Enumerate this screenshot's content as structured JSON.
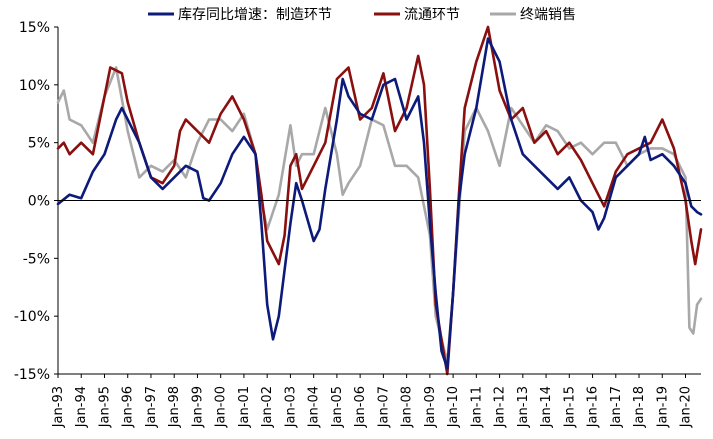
{
  "chart_data": {
    "type": "line",
    "title": "",
    "xlabel": "",
    "ylabel": "",
    "ylim": [
      -15,
      15
    ],
    "yticks": [
      -15,
      -10,
      -5,
      0,
      5,
      10,
      15
    ],
    "ytick_labels": [
      "-15%",
      "-10%",
      "-5%",
      "0%",
      "5%",
      "10%",
      "15%"
    ],
    "xticks": [
      "Jan-93",
      "Jan-94",
      "Jan-95",
      "Jan-96",
      "Jan-97",
      "Jan-98",
      "Jan-99",
      "Jan-00",
      "Jan-01",
      "Jan-02",
      "Jan-03",
      "Jan-04",
      "Jan-05",
      "Jan-06",
      "Jan-07",
      "Jan-08",
      "Jan-09",
      "Jan-10",
      "Jan-11",
      "Jan-12",
      "Jan-13",
      "Jan-14",
      "Jan-15",
      "Jan-16",
      "Jan-17",
      "Jan-18",
      "Jan-19",
      "Jan-20"
    ],
    "x_start": "1993-01",
    "x_end": "2020-09",
    "legend_position": "top",
    "grid": false,
    "series": [
      {
        "name": "库存同比增速：制造环节",
        "color": "#0c1a7a",
        "points": [
          [
            "1993-01",
            -0.3
          ],
          [
            "1993-07",
            0.5
          ],
          [
            "1994-01",
            0.2
          ],
          [
            "1994-07",
            2.5
          ],
          [
            "1995-01",
            4.0
          ],
          [
            "1995-07",
            7.0
          ],
          [
            "1995-10",
            8.0
          ],
          [
            "1996-01",
            7.0
          ],
          [
            "1996-07",
            5.0
          ],
          [
            "1997-01",
            2.0
          ],
          [
            "1997-07",
            1.0
          ],
          [
            "1998-01",
            2.0
          ],
          [
            "1998-07",
            3.0
          ],
          [
            "1999-01",
            2.5
          ],
          [
            "1999-04",
            0.2
          ],
          [
            "1999-07",
            0.0
          ],
          [
            "2000-01",
            1.5
          ],
          [
            "2000-07",
            4.0
          ],
          [
            "2001-01",
            5.5
          ],
          [
            "2001-07",
            4.0
          ],
          [
            "2001-10",
            -2.0
          ],
          [
            "2002-01",
            -9.0
          ],
          [
            "2002-04",
            -12.0
          ],
          [
            "2002-07",
            -10.0
          ],
          [
            "2002-10",
            -6.0
          ],
          [
            "2003-01",
            -2.0
          ],
          [
            "2003-04",
            1.5
          ],
          [
            "2003-07",
            0.0
          ],
          [
            "2004-01",
            -3.5
          ],
          [
            "2004-04",
            -2.5
          ],
          [
            "2004-07",
            1.0
          ],
          [
            "2005-01",
            7.0
          ],
          [
            "2005-04",
            10.5
          ],
          [
            "2005-07",
            9.0
          ],
          [
            "2006-01",
            7.5
          ],
          [
            "2006-07",
            7.0
          ],
          [
            "2007-01",
            10.0
          ],
          [
            "2007-07",
            10.5
          ],
          [
            "2008-01",
            7.0
          ],
          [
            "2008-07",
            9.0
          ],
          [
            "2008-10",
            5.0
          ],
          [
            "2009-01",
            -2.0
          ],
          [
            "2009-04",
            -8.0
          ],
          [
            "2009-07",
            -13.0
          ],
          [
            "2009-10",
            -14.5
          ],
          [
            "2010-01",
            -8.0
          ],
          [
            "2010-04",
            0.0
          ],
          [
            "2010-07",
            4.0
          ],
          [
            "2011-01",
            8.0
          ],
          [
            "2011-07",
            14.0
          ],
          [
            "2012-01",
            12.0
          ],
          [
            "2012-07",
            7.0
          ],
          [
            "2013-01",
            4.0
          ],
          [
            "2013-07",
            3.0
          ],
          [
            "2014-01",
            2.0
          ],
          [
            "2014-07",
            1.0
          ],
          [
            "2015-01",
            2.0
          ],
          [
            "2015-07",
            0.0
          ],
          [
            "2016-01",
            -1.0
          ],
          [
            "2016-04",
            -2.5
          ],
          [
            "2016-07",
            -1.5
          ],
          [
            "2017-01",
            2.0
          ],
          [
            "2017-07",
            3.0
          ],
          [
            "2018-01",
            4.0
          ],
          [
            "2018-04",
            5.5
          ],
          [
            "2018-07",
            3.5
          ],
          [
            "2019-01",
            4.0
          ],
          [
            "2019-07",
            3.0
          ],
          [
            "2020-01",
            1.5
          ],
          [
            "2020-04",
            -0.5
          ],
          [
            "2020-07",
            -1.0
          ],
          [
            "2020-09",
            -1.2
          ]
        ]
      },
      {
        "name": "流通环节",
        "color": "#8a0f0f",
        "points": [
          [
            "1993-01",
            4.5
          ],
          [
            "1993-04",
            5.0
          ],
          [
            "1993-07",
            4.0
          ],
          [
            "1994-01",
            5.0
          ],
          [
            "1994-07",
            4.0
          ],
          [
            "1995-01",
            9.0
          ],
          [
            "1995-04",
            11.5
          ],
          [
            "1995-10",
            11.0
          ],
          [
            "1996-01",
            8.5
          ],
          [
            "1996-07",
            5.0
          ],
          [
            "1997-01",
            2.0
          ],
          [
            "1997-07",
            1.5
          ],
          [
            "1998-01",
            3.0
          ],
          [
            "1998-04",
            6.0
          ],
          [
            "1998-07",
            7.0
          ],
          [
            "1999-01",
            6.0
          ],
          [
            "1999-07",
            5.0
          ],
          [
            "2000-01",
            7.5
          ],
          [
            "2000-07",
            9.0
          ],
          [
            "2001-01",
            7.0
          ],
          [
            "2001-07",
            4.0
          ],
          [
            "2001-10",
            0.5
          ],
          [
            "2002-01",
            -3.5
          ],
          [
            "2002-07",
            -5.5
          ],
          [
            "2002-10",
            -3.0
          ],
          [
            "2003-01",
            3.0
          ],
          [
            "2003-04",
            4.0
          ],
          [
            "2003-07",
            1.0
          ],
          [
            "2004-01",
            3.0
          ],
          [
            "2004-07",
            5.0
          ],
          [
            "2005-01",
            10.5
          ],
          [
            "2005-07",
            11.5
          ],
          [
            "2006-01",
            7.0
          ],
          [
            "2006-07",
            8.0
          ],
          [
            "2007-01",
            11.0
          ],
          [
            "2007-07",
            6.0
          ],
          [
            "2008-01",
            8.0
          ],
          [
            "2008-07",
            12.5
          ],
          [
            "2008-10",
            10.0
          ],
          [
            "2009-01",
            1.0
          ],
          [
            "2009-04",
            -9.0
          ],
          [
            "2009-10",
            -15.0
          ],
          [
            "2010-01",
            -8.0
          ],
          [
            "2010-04",
            0.5
          ],
          [
            "2010-07",
            8.0
          ],
          [
            "2011-01",
            12.0
          ],
          [
            "2011-07",
            15.0
          ],
          [
            "2012-01",
            9.5
          ],
          [
            "2012-07",
            7.0
          ],
          [
            "2013-01",
            8.0
          ],
          [
            "2013-07",
            5.0
          ],
          [
            "2014-01",
            6.0
          ],
          [
            "2014-07",
            4.0
          ],
          [
            "2015-01",
            5.0
          ],
          [
            "2015-07",
            3.5
          ],
          [
            "2016-01",
            1.5
          ],
          [
            "2016-07",
            -0.5
          ],
          [
            "2017-01",
            2.5
          ],
          [
            "2017-07",
            4.0
          ],
          [
            "2018-01",
            4.5
          ],
          [
            "2018-07",
            5.0
          ],
          [
            "2019-01",
            7.0
          ],
          [
            "2019-07",
            4.5
          ],
          [
            "2020-01",
            0.0
          ],
          [
            "2020-04",
            -3.5
          ],
          [
            "2020-06",
            -5.5
          ],
          [
            "2020-09",
            -2.5
          ]
        ]
      },
      {
        "name": "终端销售",
        "color": "#a8a8a8",
        "points": [
          [
            "1993-01",
            8.5
          ],
          [
            "1993-04",
            9.5
          ],
          [
            "1993-07",
            7.0
          ],
          [
            "1994-01",
            6.5
          ],
          [
            "1994-07",
            5.0
          ],
          [
            "1995-01",
            9.0
          ],
          [
            "1995-07",
            11.5
          ],
          [
            "1996-01",
            6.0
          ],
          [
            "1996-07",
            2.0
          ],
          [
            "1997-01",
            3.0
          ],
          [
            "1997-07",
            2.5
          ],
          [
            "1998-01",
            3.5
          ],
          [
            "1998-07",
            2.0
          ],
          [
            "1999-01",
            5.0
          ],
          [
            "1999-07",
            7.0
          ],
          [
            "2000-01",
            7.0
          ],
          [
            "2000-07",
            6.0
          ],
          [
            "2001-01",
            7.5
          ],
          [
            "2001-07",
            4.0
          ],
          [
            "2001-10",
            0.0
          ],
          [
            "2002-01",
            -2.5
          ],
          [
            "2002-07",
            0.5
          ],
          [
            "2003-01",
            6.5
          ],
          [
            "2003-04",
            3.0
          ],
          [
            "2003-07",
            4.0
          ],
          [
            "2004-01",
            4.0
          ],
          [
            "2004-07",
            8.0
          ],
          [
            "2005-01",
            4.0
          ],
          [
            "2005-04",
            0.5
          ],
          [
            "2005-07",
            1.5
          ],
          [
            "2006-01",
            3.0
          ],
          [
            "2006-07",
            7.0
          ],
          [
            "2007-01",
            6.5
          ],
          [
            "2007-07",
            3.0
          ],
          [
            "2008-01",
            3.0
          ],
          [
            "2008-07",
            2.0
          ],
          [
            "2009-01",
            -3.0
          ],
          [
            "2009-04",
            -10.0
          ],
          [
            "2009-10",
            -14.0
          ],
          [
            "2010-01",
            -8.0
          ],
          [
            "2010-07",
            6.0
          ],
          [
            "2011-01",
            8.0
          ],
          [
            "2011-07",
            6.0
          ],
          [
            "2012-01",
            3.0
          ],
          [
            "2012-07",
            8.0
          ],
          [
            "2013-01",
            6.5
          ],
          [
            "2013-07",
            5.0
          ],
          [
            "2014-01",
            6.5
          ],
          [
            "2014-07",
            6.0
          ],
          [
            "2015-01",
            4.5
          ],
          [
            "2015-07",
            5.0
          ],
          [
            "2016-01",
            4.0
          ],
          [
            "2016-07",
            5.0
          ],
          [
            "2017-01",
            5.0
          ],
          [
            "2017-07",
            3.0
          ],
          [
            "2018-01",
            4.0
          ],
          [
            "2018-07",
            4.5
          ],
          [
            "2019-01",
            4.5
          ],
          [
            "2019-07",
            4.0
          ],
          [
            "2020-01",
            2.0
          ],
          [
            "2020-03",
            -11.0
          ],
          [
            "2020-05",
            -11.5
          ],
          [
            "2020-07",
            -9.0
          ],
          [
            "2020-09",
            -8.5
          ]
        ]
      }
    ]
  }
}
